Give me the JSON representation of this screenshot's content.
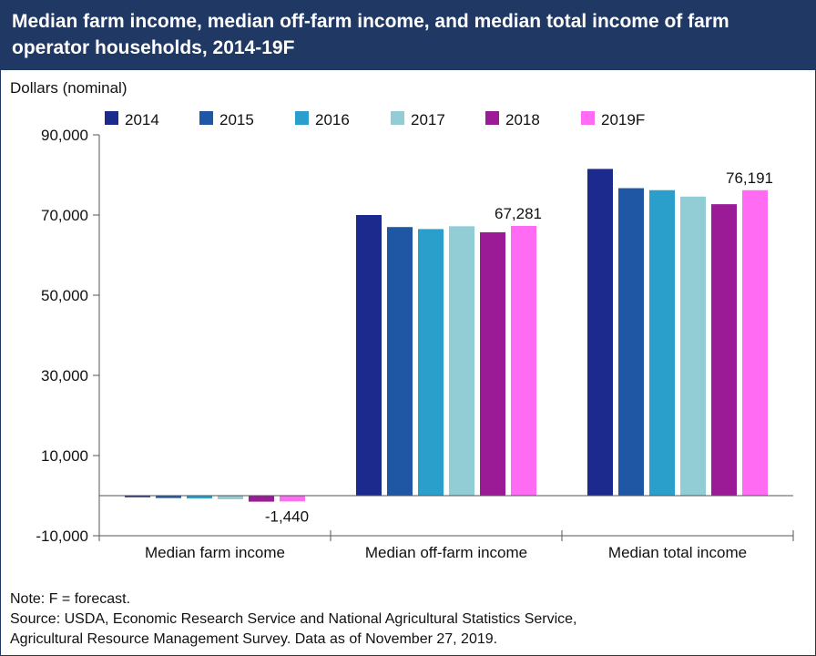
{
  "title": "Median farm income, median off-farm income, and median total income of farm operator households, 2014-19F",
  "unit_label": "Dollars (nominal)",
  "note_lines": [
    "Note: F = forecast.",
    "Source: USDA, Economic Research Service and National Agricultural Statistics Service,",
    "Agricultural Resource Management Survey. Data as of November 27, 2019."
  ],
  "colors": {
    "title_bg": "#1f3864",
    "series": [
      "#1b2a8c",
      "#1f57a4",
      "#2a9fcb",
      "#92cdd6",
      "#9b1a95",
      "#ff6bf3"
    ]
  },
  "chart_data": {
    "type": "bar",
    "categories": [
      "Median farm income",
      "Median off-farm income",
      "Median total income"
    ],
    "series": [
      {
        "name": "2014",
        "values": [
          -400,
          70000,
          81500
        ]
      },
      {
        "name": "2015",
        "values": [
          -600,
          67000,
          76700
        ]
      },
      {
        "name": "2016",
        "values": [
          -700,
          66500,
          76200
        ]
      },
      {
        "name": "2017",
        "values": [
          -900,
          67200,
          74600
        ]
      },
      {
        "name": "2018",
        "values": [
          -1500,
          65700,
          72700
        ]
      },
      {
        "name": "2019F",
        "values": [
          -1440,
          67281,
          76191
        ]
      }
    ],
    "data_labels": [
      {
        "series": 5,
        "category": 0,
        "text": "-1,440"
      },
      {
        "series": 5,
        "category": 1,
        "text": "67,281"
      },
      {
        "series": 5,
        "category": 2,
        "text": "76,191"
      }
    ],
    "ylim": [
      -10000,
      90000
    ],
    "yticks": [
      -10000,
      10000,
      30000,
      50000,
      70000,
      90000
    ],
    "ytick_labels": [
      "-10,000",
      "10,000",
      "30,000",
      "50,000",
      "70,000",
      "90,000"
    ],
    "xlabel": "",
    "ylabel": "Dollars (nominal)",
    "legend_position": "top",
    "grid": false
  }
}
